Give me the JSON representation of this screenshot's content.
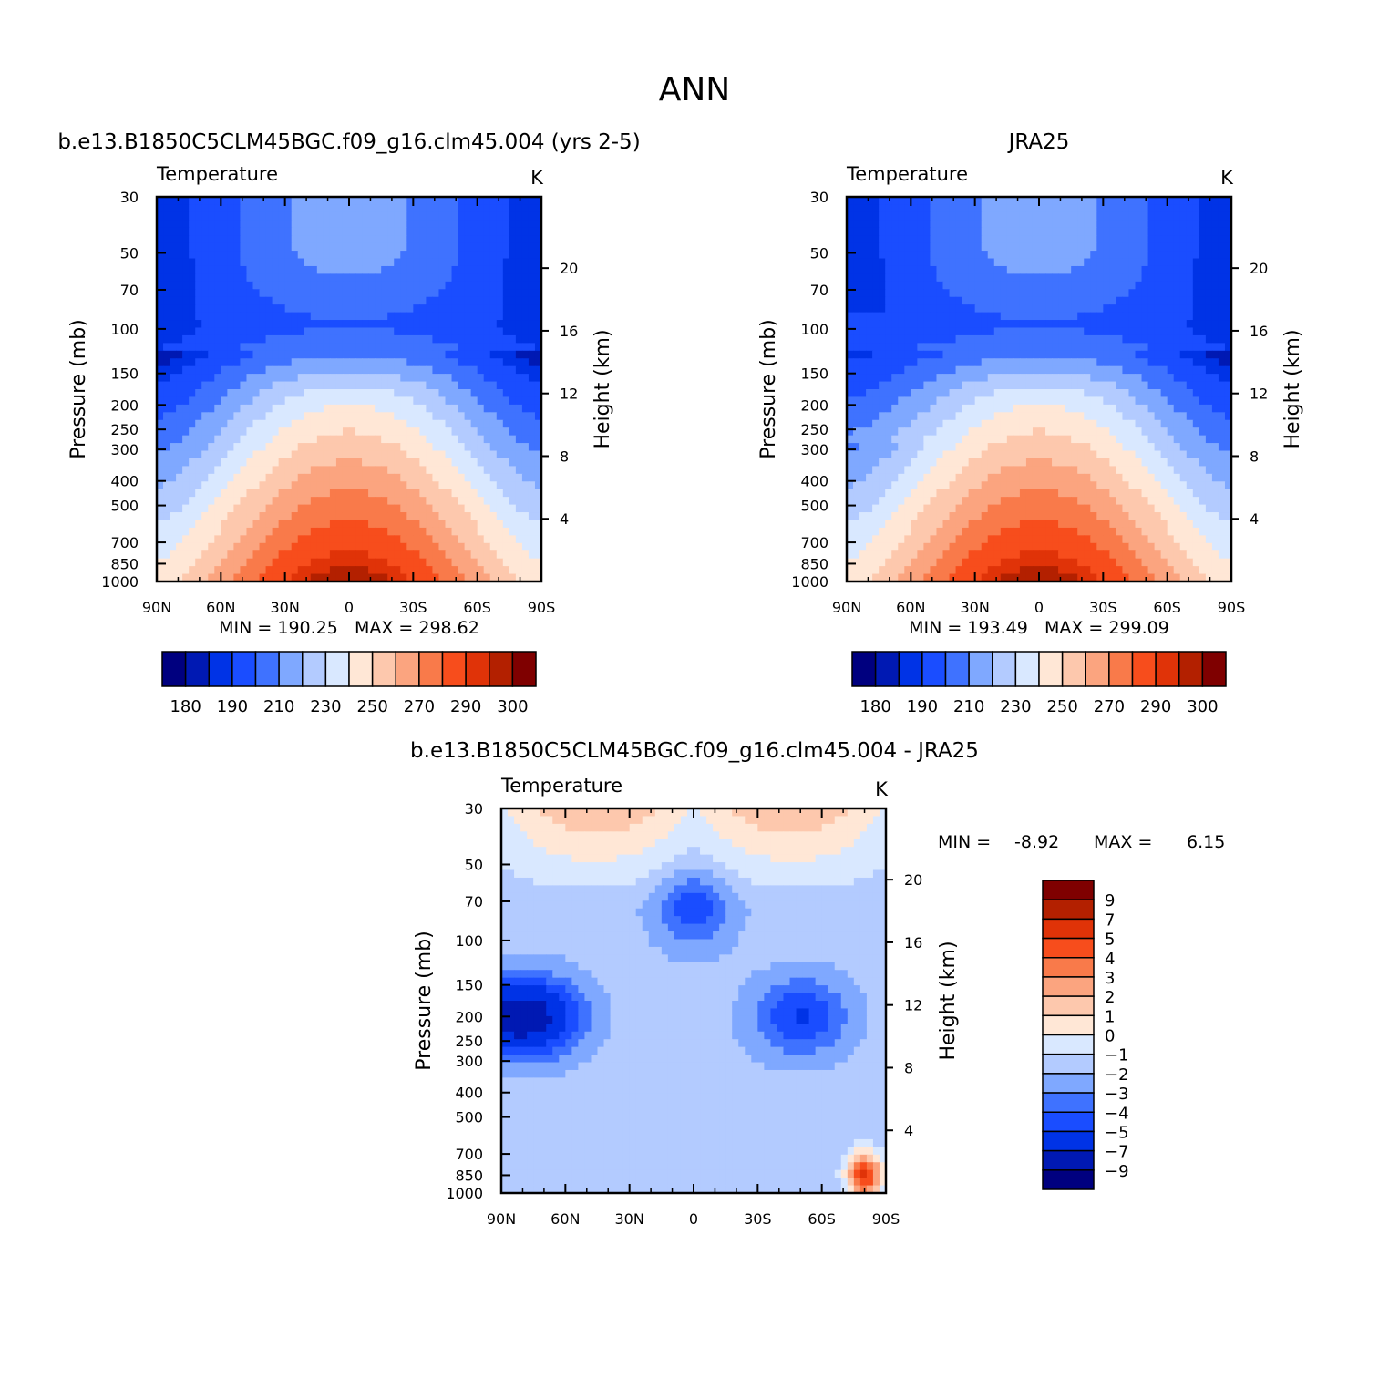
{
  "figure_title": "ANN",
  "colors": {
    "abs_levels": [
      "#00007f",
      "#0019b3",
      "#0033e6",
      "#1a4dff",
      "#3f72ff",
      "#7fa8ff",
      "#b3cbff",
      "#d9e8ff",
      "#ffe7d6",
      "#fdc8ad",
      "#fba47f",
      "#f97a4a",
      "#f74d1c",
      "#e03308",
      "#b32000",
      "#7f0000"
    ],
    "diff_levels": [
      "#00007f",
      "#0019b3",
      "#0033e6",
      "#1a4dff",
      "#3f72ff",
      "#7fa8ff",
      "#b3cbff",
      "#d9e8ff",
      "#ffe7d6",
      "#fdc8ad",
      "#fba47f",
      "#f97a4a",
      "#f74d1c",
      "#e03308",
      "#b32000",
      "#7f0000"
    ]
  },
  "chart_data": [
    {
      "type": "contour",
      "title": "b.e13.B1850C5CLM45BGC.f09_g16.clm45.004 (yrs 2-5)",
      "variable": "Temperature",
      "units": "K",
      "ylabel": "Pressure (mb)",
      "y2label": "Height (km)",
      "x_ticks": [
        "90N",
        "60N",
        "30N",
        "0",
        "30S",
        "60S",
        "90S"
      ],
      "x_values": [
        90,
        60,
        30,
        0,
        -30,
        -60,
        -90
      ],
      "y_ticks": [
        30,
        50,
        70,
        100,
        150,
        200,
        250,
        300,
        400,
        500,
        700,
        850,
        1000
      ],
      "y2_ticks": [
        4,
        8,
        12,
        16,
        20
      ],
      "stats_text": "MIN = 190.25   MAX = 298.62",
      "min": 190.25,
      "max": 298.62,
      "colorbar_labels": [
        "180",
        "190",
        "210",
        "230",
        "250",
        "270",
        "290",
        "300"
      ],
      "levels": [
        180,
        185,
        190,
        200,
        210,
        220,
        230,
        240,
        250,
        260,
        270,
        280,
        290,
        295,
        300
      ],
      "model_offset": 0,
      "jra": false
    },
    {
      "type": "contour",
      "title": "JRA25",
      "variable": "Temperature",
      "units": "K",
      "ylabel": "Pressure (mb)",
      "y2label": "Height (km)",
      "x_ticks": [
        "90N",
        "60N",
        "30N",
        "0",
        "30S",
        "60S",
        "90S"
      ],
      "x_values": [
        90,
        60,
        30,
        0,
        -30,
        -60,
        -90
      ],
      "y_ticks": [
        30,
        50,
        70,
        100,
        150,
        200,
        250,
        300,
        400,
        500,
        700,
        850,
        1000
      ],
      "y2_ticks": [
        4,
        8,
        12,
        16,
        20
      ],
      "stats_text": "MIN = 193.49   MAX = 299.09",
      "min": 193.49,
      "max": 299.09,
      "colorbar_labels": [
        "180",
        "190",
        "210",
        "230",
        "250",
        "270",
        "290",
        "300"
      ],
      "levels": [
        180,
        185,
        190,
        200,
        210,
        220,
        230,
        240,
        250,
        260,
        270,
        280,
        290,
        295,
        300
      ],
      "model_offset": 0,
      "jra": true
    },
    {
      "type": "contour",
      "title": "b.e13.B1850C5CLM45BGC.f09_g16.clm45.004 - JRA25",
      "variable": "Temperature",
      "units": "K",
      "ylabel": "Pressure (mb)",
      "y2label": "Height (km)",
      "x_ticks": [
        "90N",
        "60N",
        "30N",
        "0",
        "30S",
        "60S",
        "90S"
      ],
      "x_values": [
        90,
        60,
        30,
        0,
        -30,
        -60,
        -90
      ],
      "y_ticks": [
        30,
        50,
        70,
        100,
        150,
        200,
        250,
        300,
        400,
        500,
        700,
        850,
        1000
      ],
      "y2_ticks": [
        4,
        8,
        12,
        16,
        20
      ],
      "stats_min_label": "MIN =",
      "stats_min_value": "-8.92",
      "stats_max_label": "MAX =",
      "stats_max_value": "6.15",
      "min": -8.92,
      "max": 6.15,
      "colorbar_labels": [
        "9",
        "7",
        "5",
        "4",
        "3",
        "2",
        "1",
        "0",
        "−1",
        "−2",
        "−3",
        "−4",
        "−5",
        "−7",
        "−9"
      ],
      "levels": [
        -9,
        -7,
        -5,
        -4,
        -3,
        -2,
        -1,
        0,
        1,
        2,
        3,
        4,
        5,
        7,
        9
      ]
    }
  ]
}
